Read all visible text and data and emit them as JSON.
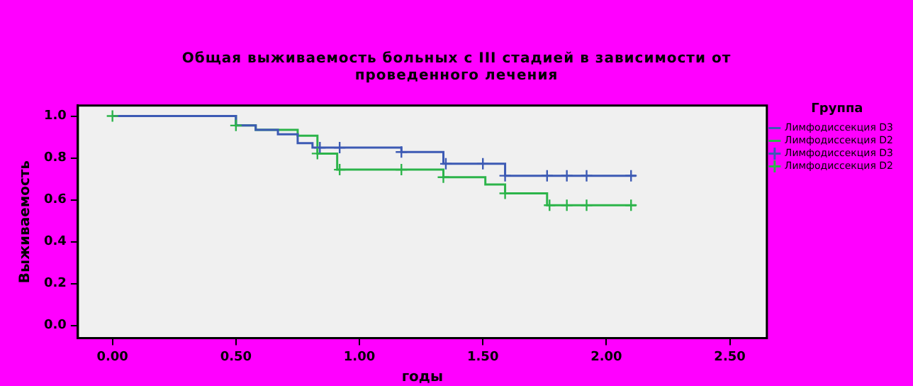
{
  "chart_data": {
    "type": "step",
    "title": "Общая выживаемость больных с III стадией в зависимости от проведенного лечения",
    "xlabel": "годы",
    "ylabel": "Выживаемость",
    "legend_title": "Группа",
    "legend": "right",
    "series": [
      {
        "name": "Лимфодиссекция D3",
        "color": "#3c5ab4",
        "marker": "none",
        "x": [
          0,
          0.5,
          0.58,
          0.67,
          0.75,
          0.81,
          1.17,
          1.34,
          1.59,
          2.12
        ],
        "values": [
          1.0,
          0.955,
          0.934,
          0.913,
          0.871,
          0.849,
          0.828,
          0.772,
          0.715,
          0.715
        ]
      },
      {
        "name": "Лимфодиссекция D2",
        "color": "#2cb44a",
        "marker": "none",
        "x": [
          0,
          0.5,
          0.58,
          0.75,
          0.83,
          0.91,
          1.34,
          1.51,
          1.59,
          1.76,
          2.12
        ],
        "values": [
          1.0,
          0.955,
          0.934,
          0.906,
          0.821,
          0.744,
          0.708,
          0.673,
          0.631,
          0.574,
          0.574
        ]
      },
      {
        "name": "Лимфодиссекция D3",
        "type": "scatter",
        "color": "#3c5ab4",
        "marker": "cross",
        "x": [
          0.84,
          0.92,
          1.17,
          1.35,
          1.5,
          1.59,
          1.76,
          1.84,
          1.92,
          2.1
        ],
        "values": [
          0.849,
          0.849,
          0.828,
          0.772,
          0.772,
          0.715,
          0.715,
          0.715,
          0.715,
          0.715
        ]
      },
      {
        "name": "Лимфодиссекция D2",
        "type": "scatter",
        "color": "#2cb44a",
        "marker": "cross",
        "x": [
          0,
          0.5,
          0.83,
          0.92,
          1.17,
          1.34,
          1.59,
          1.77,
          1.84,
          1.92,
          2.1
        ],
        "values": [
          1.0,
          0.955,
          0.821,
          0.744,
          0.744,
          0.708,
          0.631,
          0.574,
          0.574,
          0.574,
          0.574
        ]
      }
    ],
    "xlim": [
      -0.14,
      2.65
    ],
    "xticks": [
      {
        "value": 0,
        "label": "0.00"
      },
      {
        "value": 0.5,
        "label": "0.50"
      },
      {
        "value": 1,
        "label": "1.00"
      },
      {
        "value": 1.5,
        "label": "1.50"
      },
      {
        "value": 2,
        "label": "2.00"
      },
      {
        "value": 2.5,
        "label": "2.50"
      }
    ],
    "ylim": [
      -0.06,
      1.05
    ],
    "yticks": [
      {
        "value": 0,
        "label": "0.0"
      },
      {
        "value": 0.2,
        "label": "0.2"
      },
      {
        "value": 0.4,
        "label": "0.4"
      },
      {
        "value": 0.6,
        "label": "0.6"
      },
      {
        "value": 0.8,
        "label": "0.8"
      },
      {
        "value": 1,
        "label": "1.0"
      }
    ]
  }
}
